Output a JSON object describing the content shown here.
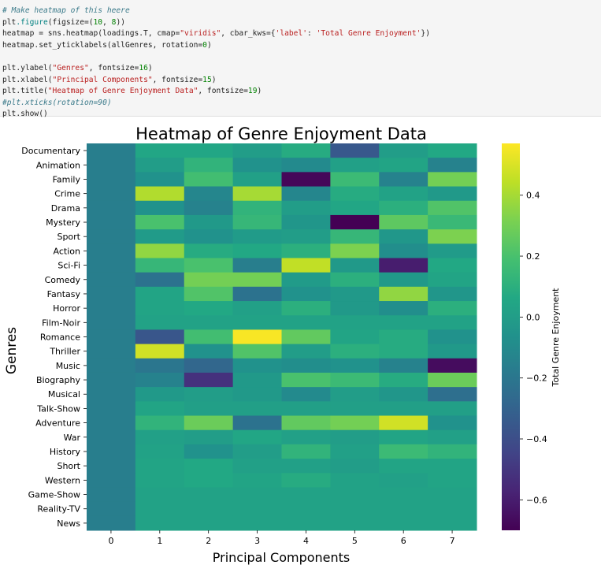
{
  "code_cell": {
    "lines": [
      [
        {
          "t": "# Make heatmap of this heere",
          "c": "comment"
        }
      ],
      [
        {
          "t": "plt",
          "c": "plain"
        },
        {
          "t": ".figure",
          "c": "builtin"
        },
        {
          "t": "(figsize=(",
          "c": "plain"
        },
        {
          "t": "10",
          "c": "number"
        },
        {
          "t": ", ",
          "c": "plain"
        },
        {
          "t": "8",
          "c": "number"
        },
        {
          "t": "))",
          "c": "plain"
        }
      ],
      [
        {
          "t": "heatmap = sns.heatmap(loadings.T, cmap=",
          "c": "plain"
        },
        {
          "t": "\"viridis\"",
          "c": "string"
        },
        {
          "t": ", cbar_kws={",
          "c": "plain"
        },
        {
          "t": "'label'",
          "c": "string"
        },
        {
          "t": ": ",
          "c": "plain"
        },
        {
          "t": "'Total Genre Enjoyment'",
          "c": "string"
        },
        {
          "t": "})",
          "c": "plain"
        }
      ],
      [
        {
          "t": "heatmap.set_yticklabels(allGenres, rotation=",
          "c": "plain"
        },
        {
          "t": "0",
          "c": "number"
        },
        {
          "t": ")",
          "c": "plain"
        }
      ],
      [],
      [
        {
          "t": "plt.ylabel(",
          "c": "plain"
        },
        {
          "t": "\"Genres\"",
          "c": "string"
        },
        {
          "t": ", fontsize=",
          "c": "plain"
        },
        {
          "t": "16",
          "c": "number"
        },
        {
          "t": ")",
          "c": "plain"
        }
      ],
      [
        {
          "t": "plt.xlabel(",
          "c": "plain"
        },
        {
          "t": "\"Principal Components\"",
          "c": "string"
        },
        {
          "t": ", fontsize=",
          "c": "plain"
        },
        {
          "t": "15",
          "c": "number"
        },
        {
          "t": ")",
          "c": "plain"
        }
      ],
      [
        {
          "t": "plt.title(",
          "c": "plain"
        },
        {
          "t": "\"Heatmap of Genre Enjoyment Data\"",
          "c": "string"
        },
        {
          "t": ", fontsize=",
          "c": "plain"
        },
        {
          "t": "19",
          "c": "number"
        },
        {
          "t": ")",
          "c": "plain"
        }
      ],
      [
        {
          "t": "#plt.xticks(rotation=90)",
          "c": "comment"
        }
      ],
      [
        {
          "t": "plt.show()",
          "c": "plain"
        }
      ]
    ]
  },
  "chart_data": {
    "type": "heatmap",
    "title": "Heatmap of Genre Enjoyment Data",
    "xlabel": "Principal Components",
    "ylabel": "Genres",
    "colormap": "viridis",
    "colorbar_label": "Total Genre Enjoyment",
    "colorbar_range": [
      -0.7,
      0.57
    ],
    "colorbar_ticks": [
      -0.6,
      -0.4,
      -0.2,
      0.0,
      0.2,
      0.4
    ],
    "colorbar_tick_labels": [
      "−0.6",
      "−0.4",
      "−0.2",
      "0.0",
      "0.2",
      "0.4"
    ],
    "x": [
      "0",
      "1",
      "2",
      "3",
      "4",
      "5",
      "6",
      "7"
    ],
    "y": [
      "Documentary",
      "Animation",
      "Family",
      "Crime",
      "Drama",
      "Mystery",
      "Sport",
      "Action",
      "Sci-Fi",
      "Comedy",
      "Fantasy",
      "Horror",
      "Film-Noir",
      "Romance",
      "Thriller",
      "Music",
      "Biography",
      "Musical",
      "Talk-Show",
      "Adventure",
      "War",
      "History",
      "Short",
      "Western",
      "Game-Show",
      "Reality-TV",
      "News"
    ],
    "values": [
      [
        -0.16,
        0.05,
        0.05,
        0.0,
        0.08,
        -0.35,
        0.0,
        0.06
      ],
      [
        -0.16,
        0.0,
        0.12,
        -0.06,
        -0.1,
        0.02,
        0.04,
        -0.14
      ],
      [
        -0.16,
        -0.06,
        0.18,
        0.02,
        -0.68,
        0.16,
        -0.14,
        0.3
      ],
      [
        -0.16,
        0.42,
        -0.12,
        0.4,
        -0.12,
        0.08,
        0.03,
        -0.02
      ],
      [
        -0.16,
        -0.06,
        -0.14,
        0.12,
        0.0,
        0.05,
        0.1,
        0.22
      ],
      [
        -0.16,
        0.2,
        -0.02,
        0.14,
        -0.04,
        -0.72,
        0.25,
        0.15
      ],
      [
        -0.16,
        -0.01,
        -0.06,
        -0.01,
        0.0,
        0.14,
        -0.03,
        0.32
      ],
      [
        -0.16,
        0.36,
        0.08,
        0.06,
        0.1,
        0.32,
        -0.08,
        -0.01
      ],
      [
        -0.16,
        0.14,
        0.2,
        -0.16,
        0.45,
        -0.02,
        -0.6,
        0.06
      ],
      [
        -0.16,
        -0.22,
        0.3,
        0.3,
        -0.01,
        0.1,
        -0.02,
        0.04
      ],
      [
        -0.16,
        0.04,
        0.22,
        -0.22,
        -0.06,
        -0.02,
        0.36,
        -0.04
      ],
      [
        -0.16,
        0.04,
        0.06,
        0.02,
        0.1,
        -0.02,
        -0.08,
        0.1
      ],
      [
        -0.16,
        0.03,
        0.03,
        0.03,
        0.03,
        0.03,
        0.03,
        0.03
      ],
      [
        -0.16,
        -0.36,
        0.18,
        0.56,
        0.26,
        0.04,
        0.08,
        -0.06
      ],
      [
        -0.16,
        0.48,
        -0.06,
        0.22,
        0.0,
        0.1,
        0.08,
        -0.02
      ],
      [
        -0.16,
        -0.2,
        -0.28,
        -0.06,
        -0.08,
        -0.06,
        -0.14,
        -0.66
      ],
      [
        -0.16,
        -0.14,
        -0.52,
        -0.02,
        0.2,
        0.16,
        0.08,
        0.28
      ],
      [
        -0.16,
        -0.02,
        0.0,
        -0.02,
        -0.1,
        0.0,
        -0.04,
        -0.24
      ],
      [
        -0.16,
        0.04,
        0.01,
        0.01,
        0.01,
        0.01,
        0.01,
        0.01
      ],
      [
        -0.16,
        0.12,
        0.28,
        -0.22,
        0.26,
        0.3,
        0.48,
        -0.06
      ],
      [
        -0.16,
        0.02,
        0.0,
        0.05,
        0.02,
        0.0,
        0.04,
        0.02
      ],
      [
        -0.16,
        0.03,
        -0.06,
        0.0,
        0.12,
        0.02,
        0.16,
        0.12
      ],
      [
        -0.16,
        0.04,
        0.06,
        0.02,
        0.02,
        0.0,
        0.04,
        0.04
      ],
      [
        -0.16,
        0.04,
        0.06,
        0.04,
        0.08,
        0.03,
        0.02,
        0.04
      ],
      [
        -0.16,
        0.03,
        0.03,
        0.03,
        0.03,
        0.03,
        0.03,
        0.03
      ],
      [
        -0.16,
        0.03,
        0.03,
        0.03,
        0.03,
        0.03,
        0.03,
        0.03
      ],
      [
        -0.16,
        0.03,
        0.03,
        0.03,
        0.03,
        0.03,
        0.03,
        0.03
      ]
    ]
  }
}
